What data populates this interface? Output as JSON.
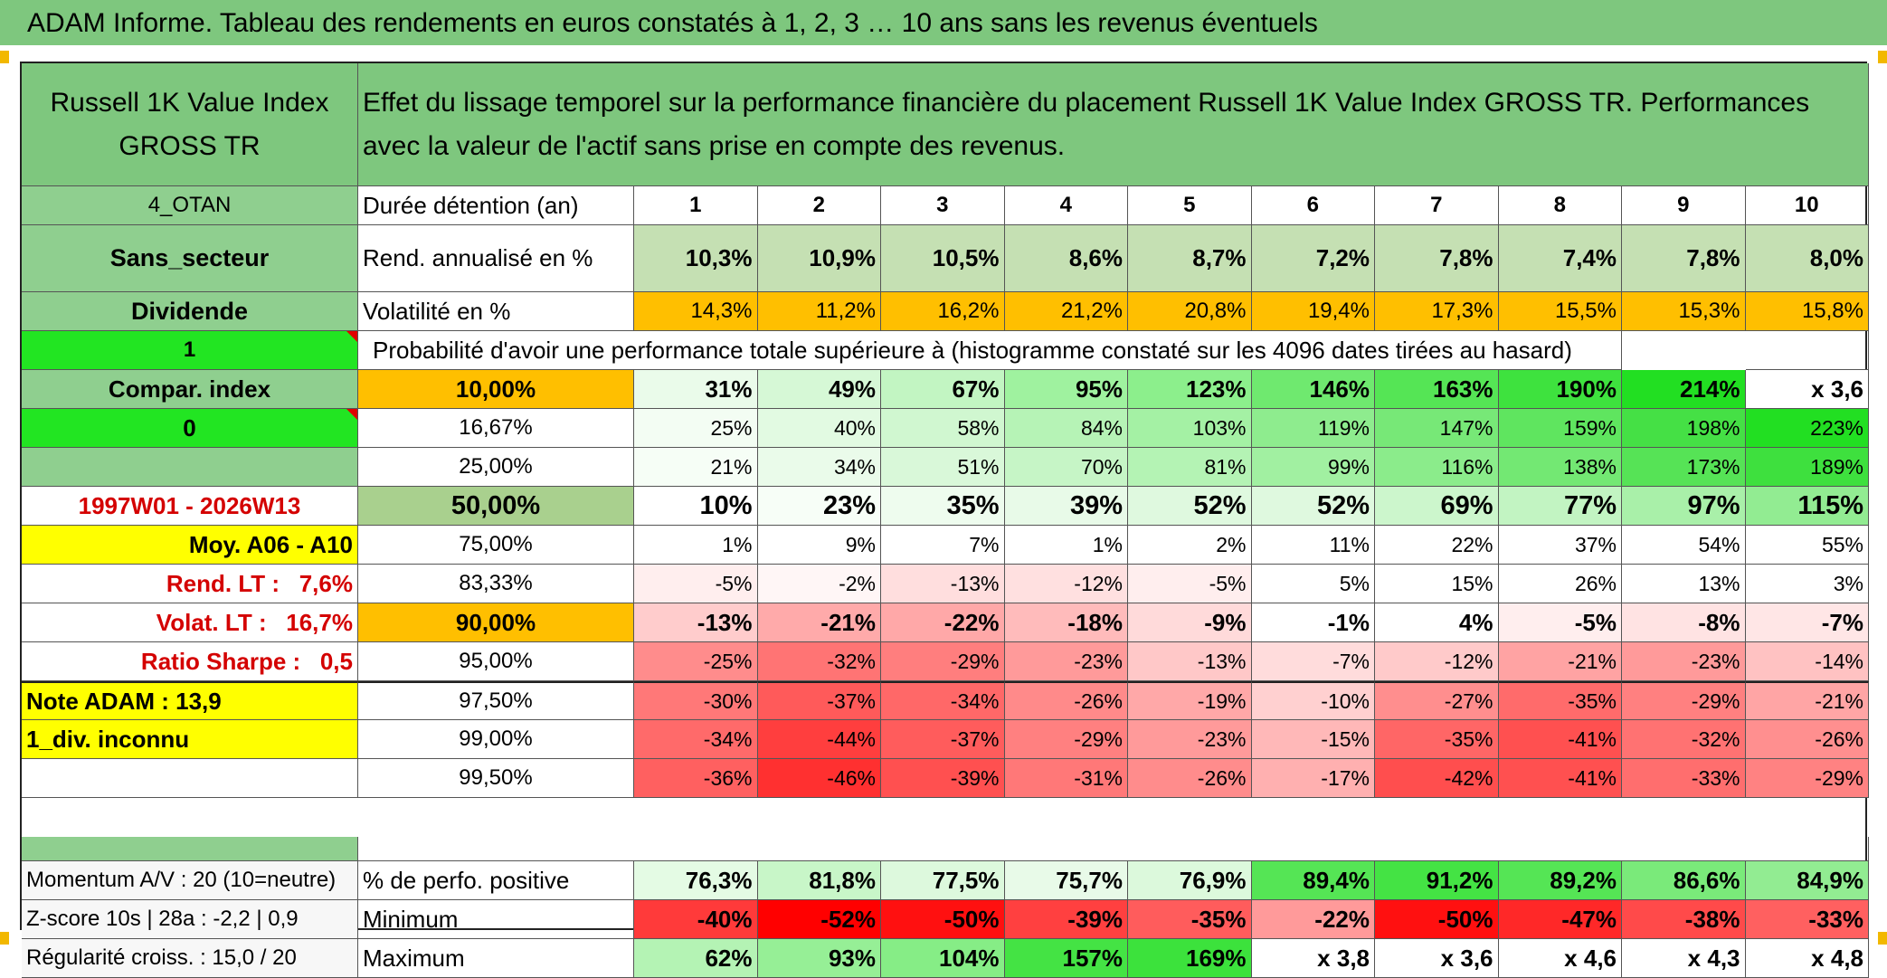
{
  "title": "ADAM Informe. Tableau des rendements en euros constatés à 1, 2, 3 … 10 ans sans les revenus éventuels",
  "header": {
    "index_name": "Russell 1K Value Index GROSS TR",
    "description": "Effet du lissage temporel sur la performance financière du placement Russell 1K Value Index GROSS TR. Performances avec la valeur de l'actif sans prise en compte des revenus."
  },
  "side": {
    "code": "4_OTAN",
    "sector": "Sans_secteur",
    "dividend": "Dividende",
    "one": "1",
    "compar": "Compar. index",
    "zero": "0",
    "period": "1997W01 - 2026W13",
    "moy": "Moy. A06 - A10",
    "rend_lt": "Rend. LT :   7,6%",
    "volat_lt": "Volat. LT :   16,7%",
    "sharpe": "Ratio Sharpe :   0,5",
    "note": "Note ADAM : 13,9",
    "div": "1_div. inconnu",
    "momentum": "Momentum A/V : 20 (10=neutre)",
    "zscore": "Z-score 10s | 28a : -2,2 | 0,9",
    "regularite": "Régularité croiss. : 15,0 / 20"
  },
  "labels": {
    "duree": "Durée détention (an)",
    "rend": "Rend. annualisé en %",
    "volat": "Volatilité en %",
    "proba": "Probabilité d'avoir une performance totale supérieure à (histogramme constaté sur les 4096 dates tirées au hasard)",
    "positive": "% de perfo. positive",
    "minimum": "Minimum",
    "maximum": "Maximum"
  },
  "years": [
    "1",
    "2",
    "3",
    "4",
    "5",
    "6",
    "7",
    "8",
    "9",
    "10"
  ],
  "rend": [
    "10,3%",
    "10,9%",
    "10,5%",
    "8,6%",
    "8,7%",
    "7,2%",
    "7,8%",
    "7,4%",
    "7,8%",
    "8,0%"
  ],
  "volat": [
    "14,3%",
    "11,2%",
    "16,2%",
    "21,2%",
    "20,8%",
    "19,4%",
    "17,3%",
    "15,5%",
    "15,3%",
    "15,8%"
  ],
  "quantile_rows": [
    {
      "label": "10,00%",
      "values": [
        "31%",
        "49%",
        "67%",
        "95%",
        "123%",
        "146%",
        "163%",
        "190%",
        "214%",
        "x 3,6"
      ]
    },
    {
      "label": "16,67%",
      "values": [
        "25%",
        "40%",
        "58%",
        "84%",
        "103%",
        "119%",
        "147%",
        "159%",
        "198%",
        "223%"
      ]
    },
    {
      "label": "25,00%",
      "values": [
        "21%",
        "34%",
        "51%",
        "70%",
        "81%",
        "99%",
        "116%",
        "138%",
        "173%",
        "189%"
      ]
    },
    {
      "label": "50,00%",
      "values": [
        "10%",
        "23%",
        "35%",
        "39%",
        "52%",
        "52%",
        "69%",
        "77%",
        "97%",
        "115%"
      ]
    },
    {
      "label": "75,00%",
      "values": [
        "1%",
        "9%",
        "7%",
        "1%",
        "2%",
        "11%",
        "22%",
        "37%",
        "54%",
        "55%"
      ]
    },
    {
      "label": "83,33%",
      "values": [
        "-5%",
        "-2%",
        "-13%",
        "-12%",
        "-5%",
        "5%",
        "15%",
        "26%",
        "13%",
        "3%"
      ]
    },
    {
      "label": "90,00%",
      "values": [
        "-13%",
        "-21%",
        "-22%",
        "-18%",
        "-9%",
        "-1%",
        "4%",
        "-5%",
        "-8%",
        "-7%"
      ]
    },
    {
      "label": "95,00%",
      "values": [
        "-25%",
        "-32%",
        "-29%",
        "-23%",
        "-13%",
        "-7%",
        "-12%",
        "-21%",
        "-23%",
        "-14%"
      ]
    },
    {
      "label": "97,50%",
      "values": [
        "-30%",
        "-37%",
        "-34%",
        "-26%",
        "-19%",
        "-10%",
        "-27%",
        "-35%",
        "-29%",
        "-21%"
      ]
    },
    {
      "label": "99,00%",
      "values": [
        "-34%",
        "-44%",
        "-37%",
        "-29%",
        "-23%",
        "-15%",
        "-35%",
        "-41%",
        "-32%",
        "-26%"
      ]
    },
    {
      "label": "99,50%",
      "values": [
        "-36%",
        "-46%",
        "-39%",
        "-31%",
        "-26%",
        "-17%",
        "-42%",
        "-41%",
        "-33%",
        "-29%"
      ]
    }
  ],
  "positive": [
    "76,3%",
    "81,8%",
    "77,5%",
    "75,7%",
    "76,9%",
    "89,4%",
    "91,2%",
    "89,2%",
    "86,6%",
    "84,9%"
  ],
  "minimum": [
    "-40%",
    "-52%",
    "-50%",
    "-39%",
    "-35%",
    "-22%",
    "-50%",
    "-47%",
    "-38%",
    "-33%"
  ],
  "maximum": [
    "62%",
    "93%",
    "104%",
    "157%",
    "169%",
    "x 3,8",
    "x 3,6",
    "x 4,6",
    "x 4,3",
    "x 4,8"
  ],
  "colors": {
    "quantiles": [
      [
        "#eafbea",
        "#d6f8d6",
        "#c2f5c2",
        "#9ff29f",
        "#8cef8c",
        "#6fe96f",
        "#55e555",
        "#3ee23e",
        "#22df22",
        "#ffffff"
      ],
      [
        "#f3fdf3",
        "#e2fae2",
        "#d0f7d0",
        "#b6f3b6",
        "#a4f1a4",
        "#8eec8e",
        "#77e877",
        "#5fe55f",
        "#45e045",
        "#22df22"
      ],
      [
        "#f6fef6",
        "#eafbea",
        "#d9f8d9",
        "#c6f5c6",
        "#b4f3b4",
        "#a1f0a1",
        "#8bec8b",
        "#73e873",
        "#56e356",
        "#3ee03e"
      ],
      [
        "#ffffff",
        "#f7fef7",
        "#eefcee",
        "#e8fae8",
        "#dff9df",
        "#dff9df",
        "#ccf6cc",
        "#c2f4c2",
        "#a9f0a9",
        "#92ec92"
      ],
      [
        "#ffffff",
        "#ffffff",
        "#ffffff",
        "#ffffff",
        "#ffffff",
        "#ffffff",
        "#ffffff",
        "#ffffff",
        "#ffffff",
        "#ffffff"
      ],
      [
        "#ffeeee",
        "#fff6f6",
        "#ffdede",
        "#ffe0e0",
        "#ffeeee",
        "#ffffff",
        "#ffffff",
        "#ffffff",
        "#ffffff",
        "#ffffff"
      ],
      [
        "#ffcccc",
        "#ffaaaa",
        "#ffa8a8",
        "#ffbbbb",
        "#ffdada",
        "#ffffff",
        "#ffffff",
        "#ffeeee",
        "#ffe3e3",
        "#ffe6e6"
      ],
      [
        "#ff8c8c",
        "#ff7474",
        "#ff7e7e",
        "#ff9a9a",
        "#ffc8c8",
        "#ffdcdc",
        "#ffcaca",
        "#ffa3a3",
        "#ff9a9a",
        "#ffc2c2"
      ],
      [
        "#ff7878",
        "#ff5a5a",
        "#ff6868",
        "#ff8a8a",
        "#ffa8a8",
        "#ffd0d0",
        "#ff8e8e",
        "#ff6b6b",
        "#ff8080",
        "#ffa5a5"
      ],
      [
        "#ff6a6a",
        "#ff3e3e",
        "#ff5c5c",
        "#ff8080",
        "#ff9a9a",
        "#ffb8b8",
        "#ff6666",
        "#ff5050",
        "#ff7272",
        "#ff8f8f"
      ],
      [
        "#ff6060",
        "#ff3030",
        "#ff5050",
        "#ff7878",
        "#ff8c8c",
        "#ffb0b0",
        "#ff4e4e",
        "#ff5050",
        "#ff6e6e",
        "#ff8282"
      ]
    ],
    "positive": [
      "#e4fbe4",
      "#c8f6c8",
      "#ddf9dd",
      "#e8fae8",
      "#dcf9dc",
      "#55e555",
      "#44e344",
      "#55e555",
      "#7aea7a",
      "#92ec92"
    ],
    "minimum": [
      "#ff3a3a",
      "#ff0000",
      "#ff1010",
      "#ff4040",
      "#ff5c5c",
      "#ff9a9a",
      "#ff1010",
      "#ff2828",
      "#ff4a4a",
      "#ff6060"
    ],
    "maximum": [
      "#b4f3b4",
      "#96ef96",
      "#86ed86",
      "#44e344",
      "#3ce23c",
      "#ffffff",
      "#ffffff",
      "#ffffff",
      "#ffffff",
      "#ffffff"
    ]
  }
}
